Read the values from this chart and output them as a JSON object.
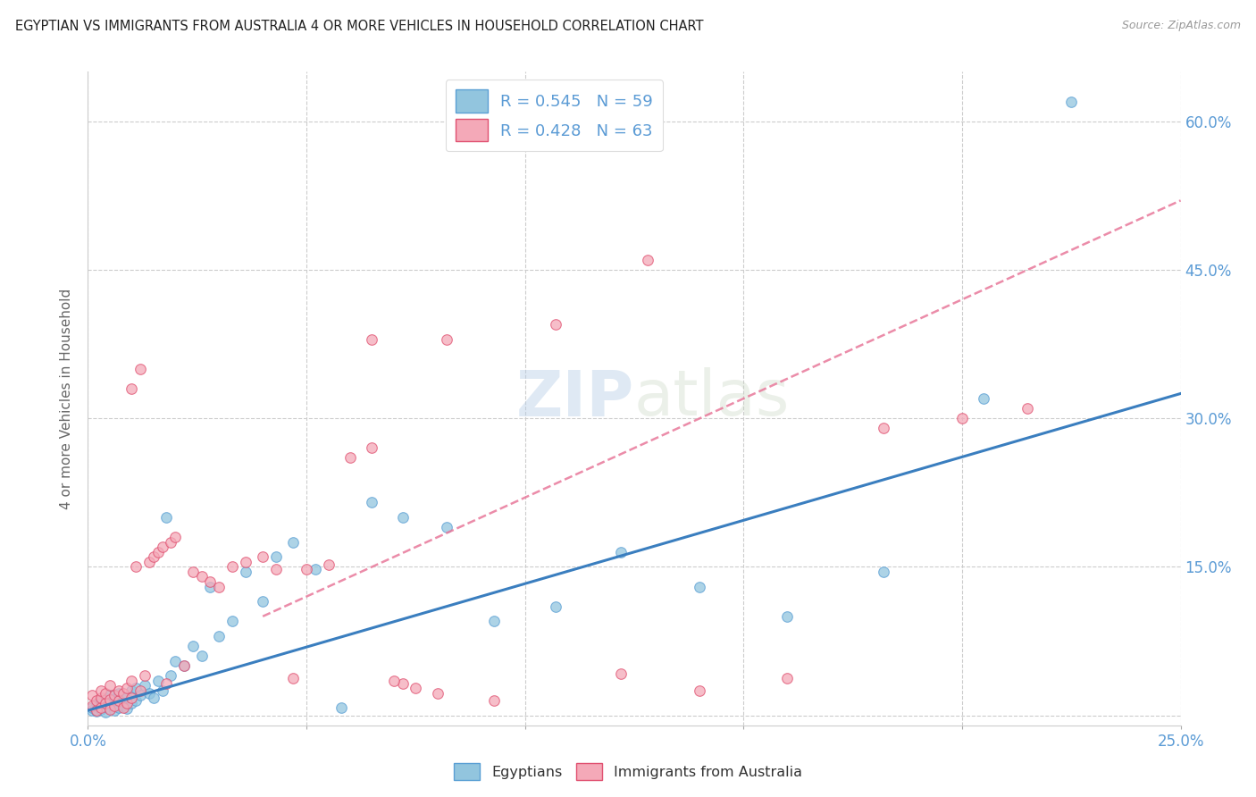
{
  "title": "EGYPTIAN VS IMMIGRANTS FROM AUSTRALIA 4 OR MORE VEHICLES IN HOUSEHOLD CORRELATION CHART",
  "source": "Source: ZipAtlas.com",
  "ylabel": "4 or more Vehicles in Household",
  "xlim": [
    0.0,
    0.25
  ],
  "ylim": [
    -0.01,
    0.65
  ],
  "xticks": [
    0.0,
    0.05,
    0.1,
    0.15,
    0.2,
    0.25
  ],
  "yticks": [
    0.0,
    0.15,
    0.3,
    0.45,
    0.6
  ],
  "xticklabels": [
    "0.0%",
    "",
    "",
    "",
    "",
    "25.0%"
  ],
  "yticklabels_right": [
    "",
    "15.0%",
    "30.0%",
    "45.0%",
    "60.0%"
  ],
  "blue_color": "#92c5de",
  "pink_color": "#f4a9b8",
  "blue_line_color": "#3a7ebf",
  "pink_line_color": "#e8789a",
  "blue_edge": "#5a9fd4",
  "pink_edge": "#e05070",
  "egyptians_x": [
    0.001,
    0.001,
    0.002,
    0.002,
    0.003,
    0.003,
    0.003,
    0.004,
    0.004,
    0.004,
    0.005,
    0.005,
    0.005,
    0.006,
    0.006,
    0.006,
    0.007,
    0.007,
    0.007,
    0.008,
    0.008,
    0.009,
    0.009,
    0.01,
    0.01,
    0.011,
    0.011,
    0.012,
    0.013,
    0.014,
    0.015,
    0.016,
    0.017,
    0.018,
    0.019,
    0.02,
    0.022,
    0.024,
    0.026,
    0.028,
    0.03,
    0.033,
    0.036,
    0.04,
    0.043,
    0.047,
    0.052,
    0.058,
    0.065,
    0.072,
    0.082,
    0.093,
    0.107,
    0.122,
    0.14,
    0.16,
    0.182,
    0.205,
    0.225
  ],
  "egyptians_y": [
    0.005,
    0.008,
    0.004,
    0.012,
    0.006,
    0.01,
    0.015,
    0.003,
    0.009,
    0.018,
    0.007,
    0.013,
    0.02,
    0.005,
    0.011,
    0.017,
    0.008,
    0.014,
    0.022,
    0.01,
    0.016,
    0.007,
    0.019,
    0.012,
    0.025,
    0.015,
    0.028,
    0.02,
    0.03,
    0.022,
    0.018,
    0.035,
    0.025,
    0.2,
    0.04,
    0.055,
    0.05,
    0.07,
    0.06,
    0.13,
    0.08,
    0.095,
    0.145,
    0.115,
    0.16,
    0.175,
    0.148,
    0.008,
    0.215,
    0.2,
    0.19,
    0.095,
    0.11,
    0.165,
    0.13,
    0.1,
    0.145,
    0.32,
    0.62
  ],
  "australia_x": [
    0.001,
    0.001,
    0.002,
    0.002,
    0.003,
    0.003,
    0.003,
    0.004,
    0.004,
    0.005,
    0.005,
    0.005,
    0.006,
    0.006,
    0.007,
    0.007,
    0.008,
    0.008,
    0.009,
    0.009,
    0.01,
    0.01,
    0.011,
    0.012,
    0.013,
    0.014,
    0.015,
    0.016,
    0.017,
    0.018,
    0.019,
    0.02,
    0.022,
    0.024,
    0.026,
    0.028,
    0.03,
    0.033,
    0.036,
    0.04,
    0.043,
    0.047,
    0.05,
    0.055,
    0.06,
    0.065,
    0.072,
    0.082,
    0.093,
    0.107,
    0.122,
    0.14,
    0.16,
    0.182,
    0.2,
    0.215,
    0.128,
    0.065,
    0.07,
    0.075,
    0.08,
    0.01,
    0.012
  ],
  "australia_y": [
    0.01,
    0.02,
    0.005,
    0.015,
    0.008,
    0.018,
    0.025,
    0.012,
    0.022,
    0.006,
    0.016,
    0.03,
    0.01,
    0.02,
    0.015,
    0.025,
    0.008,
    0.022,
    0.012,
    0.028,
    0.018,
    0.035,
    0.15,
    0.025,
    0.04,
    0.155,
    0.16,
    0.165,
    0.17,
    0.032,
    0.175,
    0.18,
    0.05,
    0.145,
    0.14,
    0.135,
    0.13,
    0.15,
    0.155,
    0.16,
    0.148,
    0.038,
    0.148,
    0.152,
    0.26,
    0.27,
    0.032,
    0.38,
    0.015,
    0.395,
    0.042,
    0.025,
    0.038,
    0.29,
    0.3,
    0.31,
    0.46,
    0.38,
    0.035,
    0.028,
    0.022,
    0.33,
    0.35
  ],
  "blue_line_x0": 0.0,
  "blue_line_y0": 0.005,
  "blue_line_x1": 0.25,
  "blue_line_y1": 0.325,
  "pink_line_x0": 0.04,
  "pink_line_y0": 0.1,
  "pink_line_x1": 0.25,
  "pink_line_y1": 0.52
}
